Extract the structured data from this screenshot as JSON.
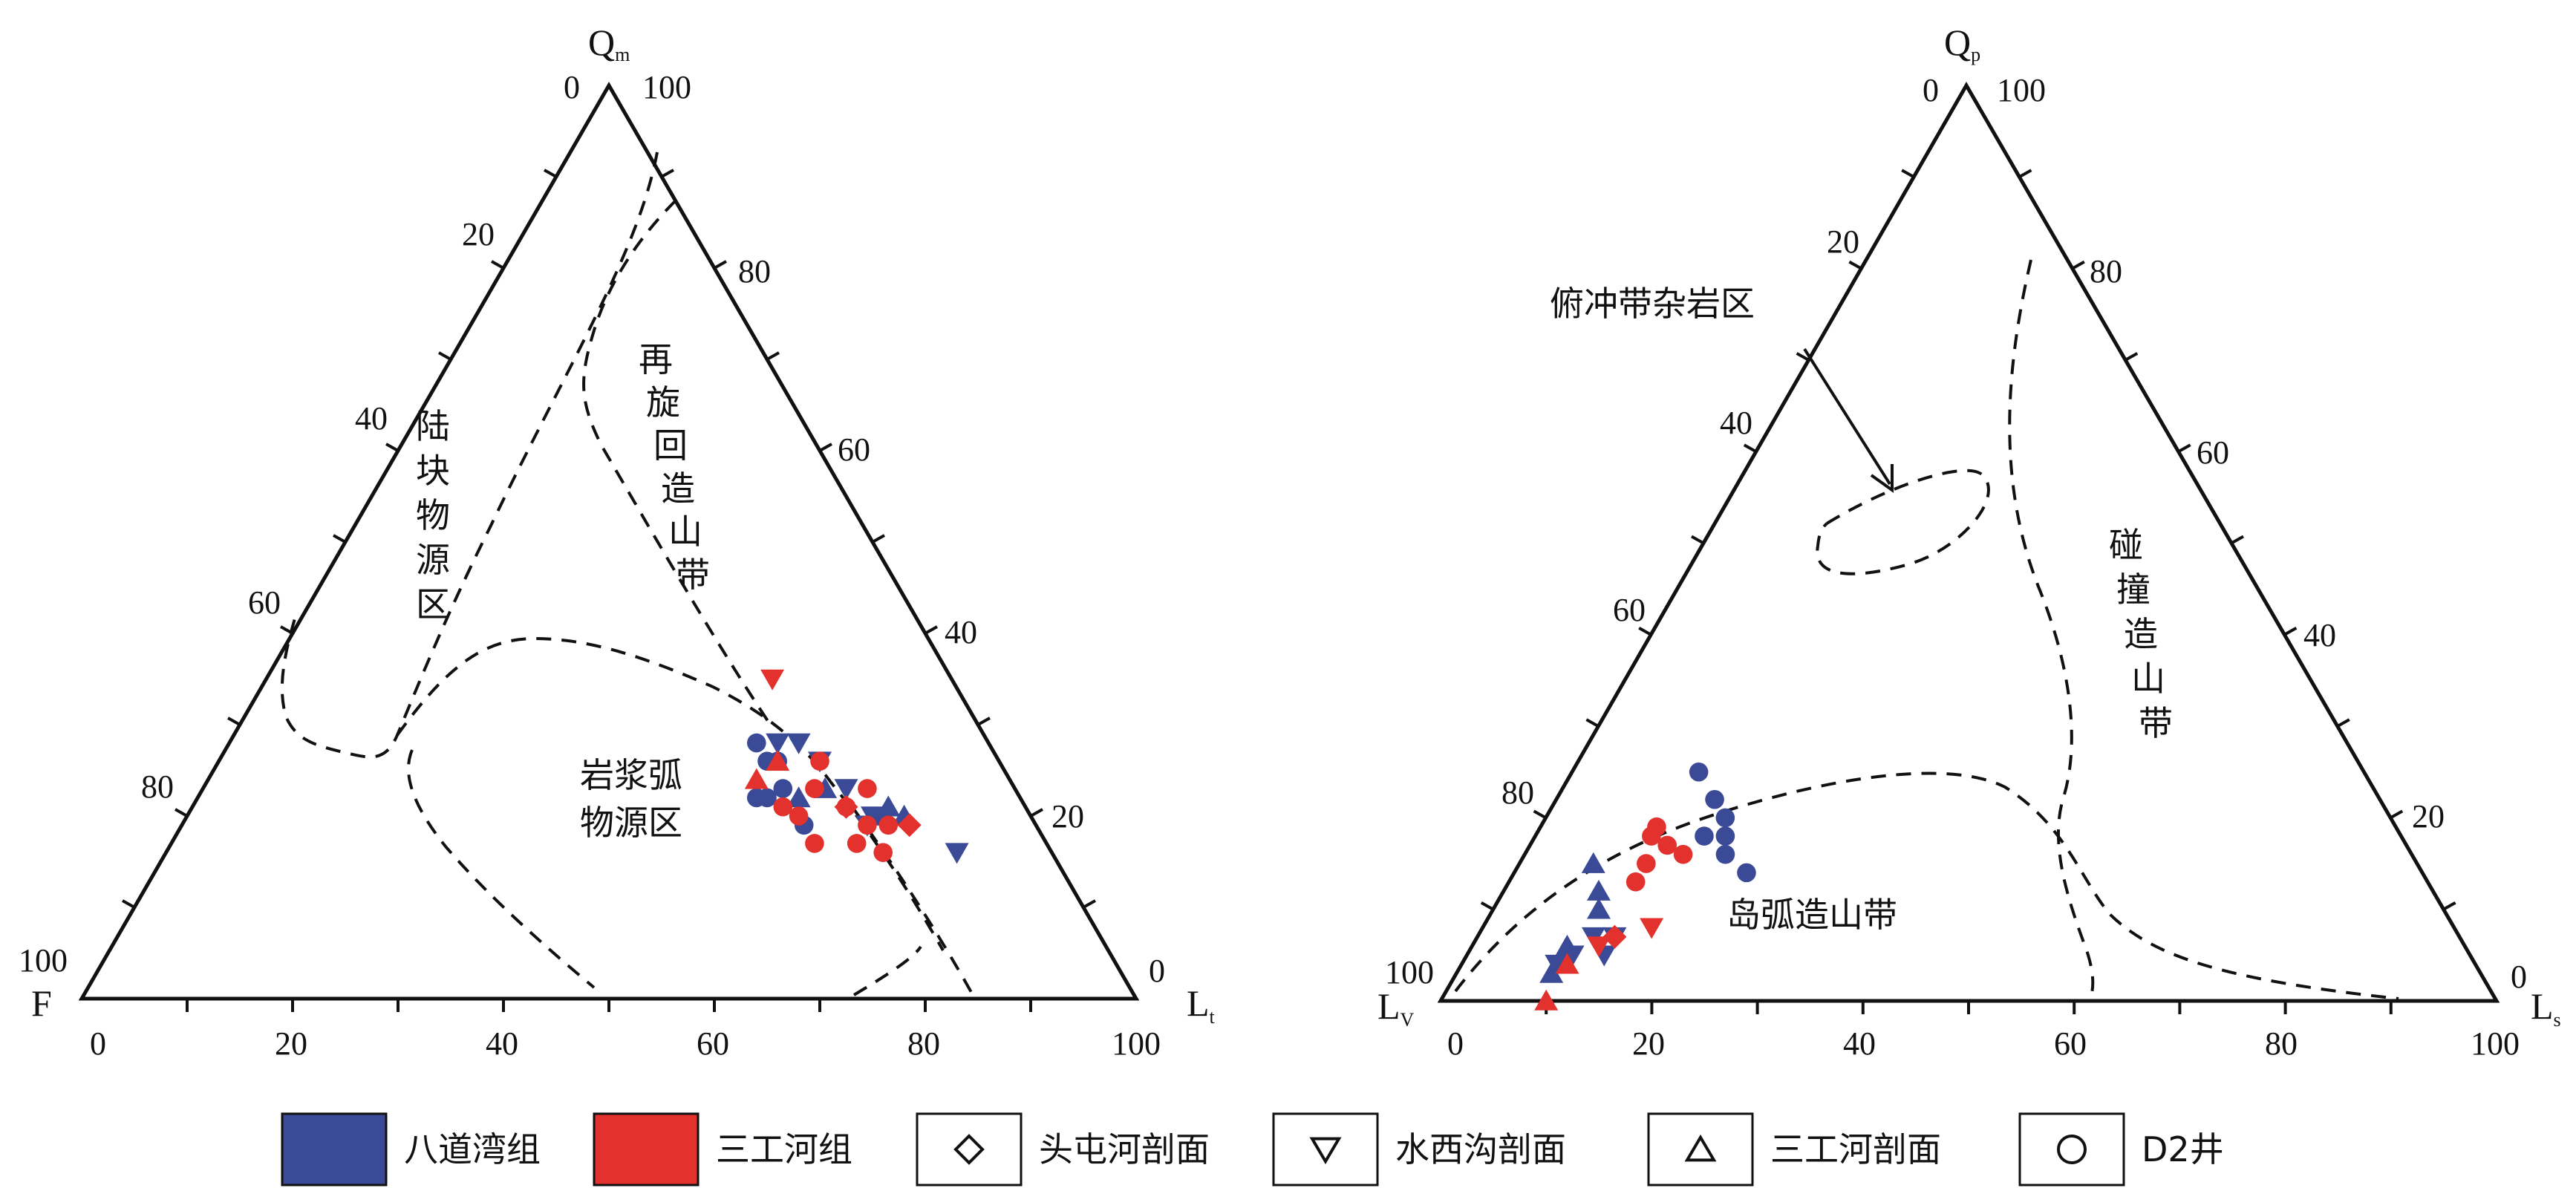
{
  "colors": {
    "badaowan": "#3a4a96",
    "sangonghe": "#e3312d",
    "line": "#111111"
  },
  "chart_data": [
    {
      "type": "scatter",
      "subtype": "ternary",
      "apex_label": "Q",
      "apex_sub": "m",
      "left_label": "F",
      "right_label": "L",
      "right_sub": "t",
      "ticks_bottom": [
        "0",
        "20",
        "40",
        "60",
        "80",
        "100"
      ],
      "ticks_left": [
        "100",
        "80",
        "60",
        "40",
        "20",
        "0"
      ],
      "ticks_right": [
        "0",
        "20",
        "40",
        "60",
        "80",
        "100"
      ],
      "region_labels": {
        "continental": "陆块物源区",
        "recycled": "再旋回造山带",
        "arc_line1": "岩浆弧",
        "arc_line2": "物源区"
      },
      "points": [
        {
          "series": "badaowan",
          "shape": "circle",
          "values": [
            26,
            21,
            53
          ]
        },
        {
          "series": "badaowan",
          "shape": "circle",
          "values": [
            26,
            22,
            52
          ]
        },
        {
          "series": "badaowan",
          "shape": "circle",
          "values": [
            28,
            22,
            50
          ]
        },
        {
          "series": "badaowan",
          "shape": "circle",
          "values": [
            23,
            22,
            55
          ]
        },
        {
          "series": "badaowan",
          "shape": "circle",
          "values": [
            22,
            24,
            54
          ]
        },
        {
          "series": "badaowan",
          "shape": "circle",
          "values": [
            22,
            25,
            53
          ]
        },
        {
          "series": "badaowan",
          "shape": "circle",
          "values": [
            19,
            22,
            59
          ]
        },
        {
          "series": "badaowan",
          "shape": "down",
          "values": [
            28,
            20,
            52
          ]
        },
        {
          "series": "badaowan",
          "shape": "down",
          "values": [
            28,
            18,
            54
          ]
        },
        {
          "series": "badaowan",
          "shape": "down",
          "values": [
            26,
            17,
            57
          ]
        },
        {
          "series": "badaowan",
          "shape": "down",
          "values": [
            23,
            16,
            61
          ]
        },
        {
          "series": "badaowan",
          "shape": "down",
          "values": [
            19,
            16,
            65
          ]
        },
        {
          "series": "badaowan",
          "shape": "down",
          "values": [
            20,
            15,
            65
          ]
        },
        {
          "series": "badaowan",
          "shape": "down",
          "values": [
            16,
            9,
            75
          ]
        },
        {
          "series": "badaowan",
          "shape": "up",
          "values": [
            22,
            21,
            57
          ]
        },
        {
          "series": "badaowan",
          "shape": "up",
          "values": [
            23,
            18,
            59
          ]
        },
        {
          "series": "badaowan",
          "shape": "up",
          "values": [
            20,
            14,
            66
          ]
        },
        {
          "series": "badaowan",
          "shape": "up",
          "values": [
            20,
            12,
            68
          ]
        },
        {
          "series": "badaowan",
          "shape": "up",
          "values": [
            21,
            13,
            66
          ]
        },
        {
          "series": "sangonghe",
          "shape": "circle",
          "values": [
            26,
            17,
            57
          ]
        },
        {
          "series": "sangonghe",
          "shape": "circle",
          "values": [
            23,
            19,
            58
          ]
        },
        {
          "series": "sangonghe",
          "shape": "circle",
          "values": [
            20,
            22,
            58
          ]
        },
        {
          "series": "sangonghe",
          "shape": "circle",
          "values": [
            21,
            17,
            62
          ]
        },
        {
          "series": "sangonghe",
          "shape": "circle",
          "values": [
            19,
            14,
            67
          ]
        },
        {
          "series": "sangonghe",
          "shape": "circle",
          "values": [
            23,
            14,
            63
          ]
        },
        {
          "series": "sangonghe",
          "shape": "circle",
          "values": [
            17,
            22,
            61
          ]
        },
        {
          "series": "sangonghe",
          "shape": "circle",
          "values": [
            17,
            18,
            65
          ]
        },
        {
          "series": "sangonghe",
          "shape": "circle",
          "values": [
            19,
            16,
            65
          ]
        },
        {
          "series": "sangonghe",
          "shape": "circle",
          "values": [
            16,
            16,
            68
          ]
        },
        {
          "series": "sangonghe",
          "shape": "circle",
          "values": [
            21,
            23,
            56
          ]
        },
        {
          "series": "sangonghe",
          "shape": "down",
          "values": [
            35,
            17,
            48
          ]
        },
        {
          "series": "sangonghe",
          "shape": "up",
          "values": [
            24,
            24,
            52
          ]
        },
        {
          "series": "sangonghe",
          "shape": "up",
          "values": [
            26,
            21,
            53
          ]
        },
        {
          "series": "sangonghe",
          "shape": "diamond",
          "values": [
            21,
            17,
            62
          ]
        },
        {
          "series": "sangonghe",
          "shape": "diamond",
          "values": [
            19,
            12,
            69
          ]
        }
      ]
    },
    {
      "type": "scatter",
      "subtype": "ternary",
      "apex_label": "Q",
      "apex_sub": "p",
      "left_label": "L",
      "left_sub": "V",
      "right_label": "L",
      "right_sub": "s",
      "ticks_bottom": [
        "0",
        "20",
        "40",
        "60",
        "80",
        "100"
      ],
      "ticks_left": [
        "100",
        "80",
        "60",
        "40",
        "20",
        "0"
      ],
      "ticks_right": [
        "0",
        "20",
        "40",
        "60",
        "80",
        "100"
      ],
      "region_labels": {
        "melange": "俯冲带杂岩区",
        "collision": "碰撞造山带",
        "arc": "岛弧造山带"
      },
      "points": [
        {
          "series": "badaowan",
          "shape": "circle",
          "values": [
            25,
            63,
            12
          ]
        },
        {
          "series": "badaowan",
          "shape": "circle",
          "values": [
            22,
            63,
            15
          ]
        },
        {
          "series": "badaowan",
          "shape": "circle",
          "values": [
            20,
            63,
            17
          ]
        },
        {
          "series": "badaowan",
          "shape": "circle",
          "values": [
            18,
            64,
            18
          ]
        },
        {
          "series": "badaowan",
          "shape": "circle",
          "values": [
            16,
            65,
            19
          ]
        },
        {
          "series": "badaowan",
          "shape": "circle",
          "values": [
            18,
            66,
            16
          ]
        },
        {
          "series": "badaowan",
          "shape": "circle",
          "values": [
            14,
            64,
            22
          ]
        },
        {
          "series": "badaowan",
          "shape": "down",
          "values": [
            7,
            82,
            11
          ]
        },
        {
          "series": "badaowan",
          "shape": "down",
          "values": [
            7,
            80,
            13
          ]
        },
        {
          "series": "badaowan",
          "shape": "down",
          "values": [
            5,
            85,
            10
          ]
        },
        {
          "series": "badaowan",
          "shape": "down",
          "values": [
            4,
            87,
            9
          ]
        },
        {
          "series": "badaowan",
          "shape": "down",
          "values": [
            5,
            82,
            13
          ]
        },
        {
          "series": "badaowan",
          "shape": "up",
          "values": [
            15,
            78,
            7
          ]
        },
        {
          "series": "badaowan",
          "shape": "up",
          "values": [
            12,
            79,
            9
          ]
        },
        {
          "series": "badaowan",
          "shape": "up",
          "values": [
            10,
            80,
            10
          ]
        },
        {
          "series": "badaowan",
          "shape": "up",
          "values": [
            6,
            85,
            9
          ]
        },
        {
          "series": "badaowan",
          "shape": "up",
          "values": [
            3,
            88,
            9
          ]
        },
        {
          "series": "sangonghe",
          "shape": "circle",
          "values": [
            19,
            70,
            11
          ]
        },
        {
          "series": "sangonghe",
          "shape": "circle",
          "values": [
            18,
            71,
            11
          ]
        },
        {
          "series": "sangonghe",
          "shape": "circle",
          "values": [
            17,
            70,
            13
          ]
        },
        {
          "series": "sangonghe",
          "shape": "circle",
          "values": [
            16,
            69,
            15
          ]
        },
        {
          "series": "sangonghe",
          "shape": "circle",
          "values": [
            15,
            73,
            12
          ]
        },
        {
          "series": "sangonghe",
          "shape": "circle",
          "values": [
            13,
            75,
            12
          ]
        },
        {
          "series": "sangonghe",
          "shape": "diamond",
          "values": [
            7,
            80,
            13
          ]
        },
        {
          "series": "sangonghe",
          "shape": "down",
          "values": [
            8,
            76,
            16
          ]
        },
        {
          "series": "sangonghe",
          "shape": "down",
          "values": [
            6,
            82,
            12
          ]
        },
        {
          "series": "sangonghe",
          "shape": "up",
          "values": [
            0,
            90,
            10
          ]
        },
        {
          "series": "sangonghe",
          "shape": "up",
          "values": [
            4,
            86,
            10
          ]
        }
      ]
    }
  ],
  "legend": [
    {
      "kind": "fill",
      "series": "badaowan",
      "label": "八道湾组"
    },
    {
      "kind": "fill",
      "series": "sangonghe",
      "label": "三工河组"
    },
    {
      "kind": "shape",
      "shape": "diamond",
      "label": "头屯河剖面"
    },
    {
      "kind": "shape",
      "shape": "down",
      "label": "水西沟剖面"
    },
    {
      "kind": "shape",
      "shape": "up",
      "label": "三工河剖面"
    },
    {
      "kind": "shape",
      "shape": "circle",
      "label": "D2井"
    }
  ]
}
